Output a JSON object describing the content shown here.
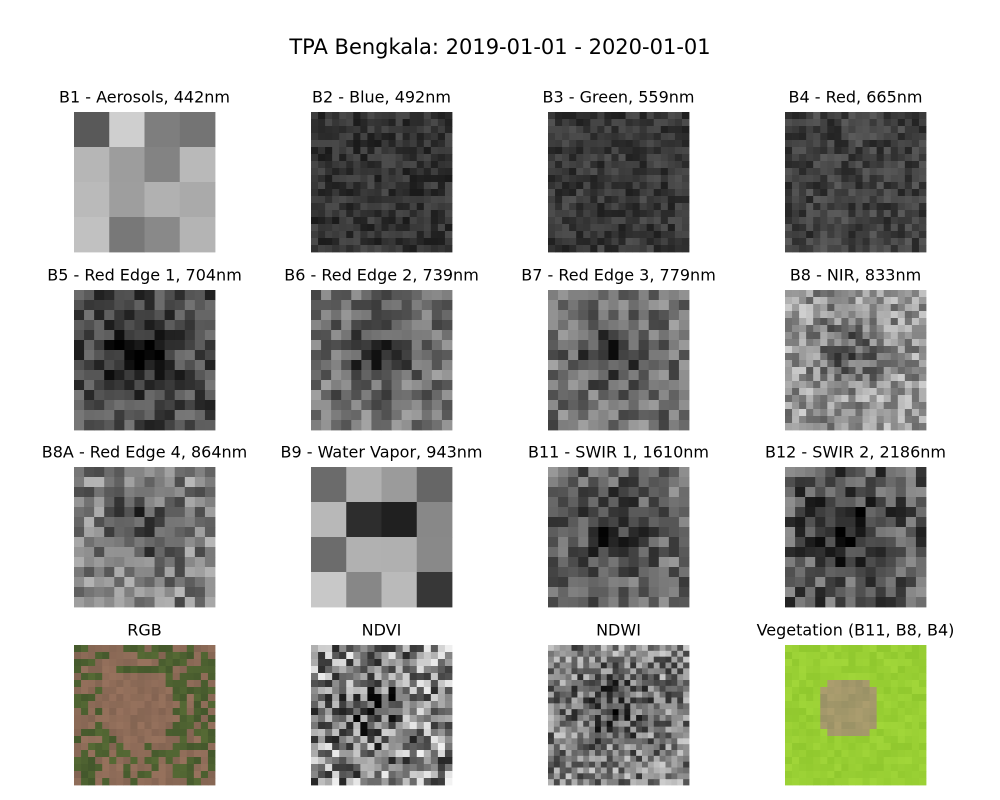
{
  "figure": {
    "title": "TPA Bengkala: 2019-01-01 - 2020-01-01",
    "panels": [
      {
        "title": "B1 - Aerosols, 442nm"
      },
      {
        "title": "B2 - Blue, 492nm"
      },
      {
        "title": "B3 - Green, 559nm"
      },
      {
        "title": "B4 - Red, 665nm"
      },
      {
        "title": "B5 - Red Edge 1, 704nm"
      },
      {
        "title": "B6 - Red Edge 2, 739nm"
      },
      {
        "title": "B7 - Red Edge 3, 779nm"
      },
      {
        "title": "B8 - NIR, 833nm"
      },
      {
        "title": "B8A - Red Edge 4, 864nm"
      },
      {
        "title": "B9 - Water Vapor, 943nm"
      },
      {
        "title": "B11 - SWIR 1, 1610nm"
      },
      {
        "title": "B12 - SWIR 2, 2186nm"
      },
      {
        "title": "RGB"
      },
      {
        "title": "NDVI"
      },
      {
        "title": "NDWI"
      },
      {
        "title": "Vegetation (B11, B8, B4)"
      }
    ]
  }
}
